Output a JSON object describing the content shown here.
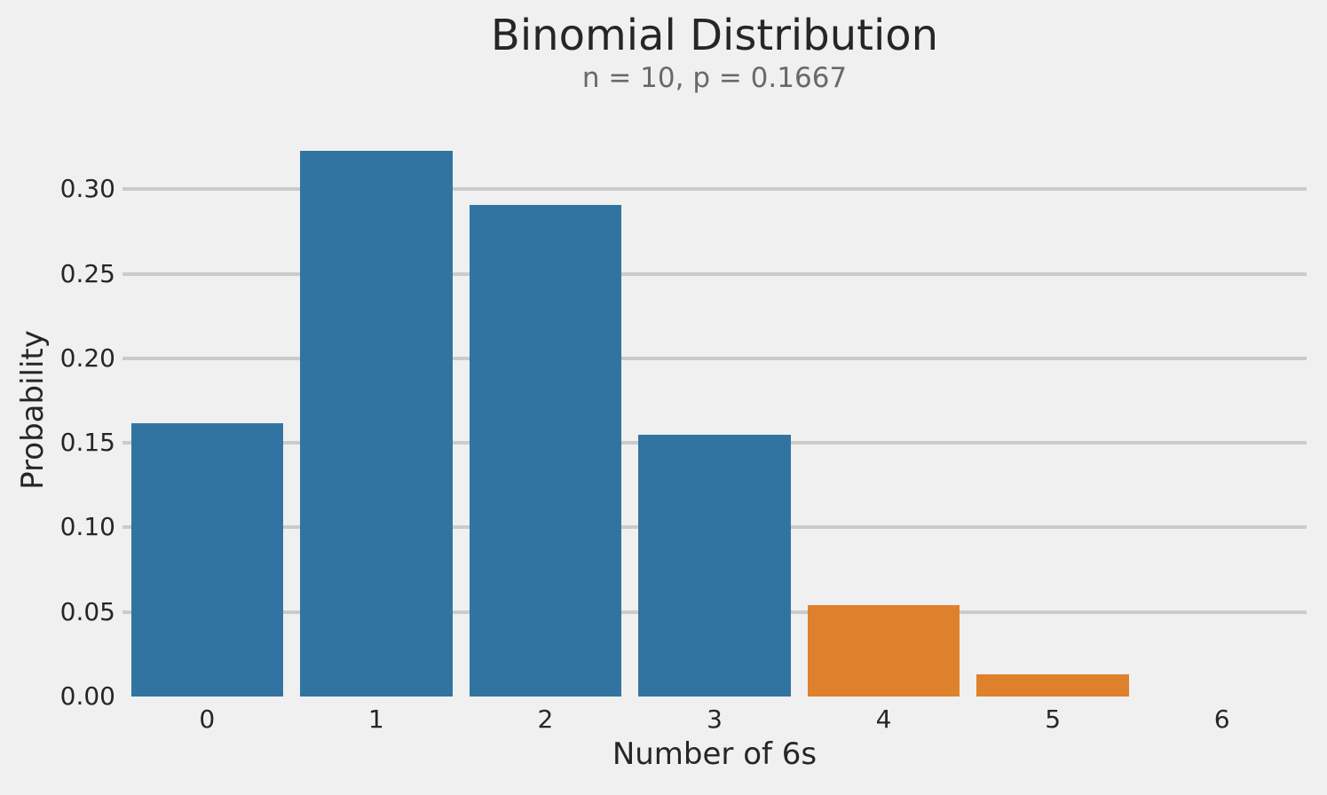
{
  "figure": {
    "background_color": "#f0f0f0",
    "text_color": "#262626",
    "subtitle_color": "#696969",
    "grid_color": "#cbcbcb"
  },
  "chart_data": {
    "type": "bar",
    "title": "Binomial Distribution",
    "subtitle": "n = 10, p = 0.1667",
    "xlabel": "Number of 6s",
    "ylabel": "Probability",
    "categories": [
      "0",
      "1",
      "2",
      "3",
      "4",
      "5",
      "6"
    ],
    "values": [
      0.1615,
      0.323,
      0.2907,
      0.155,
      0.0543,
      0.013,
      0
    ],
    "bar_colors": [
      "#3274a1",
      "#3274a1",
      "#3274a1",
      "#3274a1",
      "#df812c",
      "#df812c",
      "#df812c"
    ],
    "series_colors": {
      "blue": "#3274a1",
      "orange": "#df812c"
    },
    "yticks": {
      "values": [
        0,
        0.05,
        0.1,
        0.15,
        0.2,
        0.25,
        0.3
      ],
      "labels": [
        "0.00",
        "0.05",
        "0.10",
        "0.15",
        "0.20",
        "0.25",
        "0.30"
      ]
    },
    "ylim": [
      0,
      0.339
    ],
    "grid": "horizontal",
    "legend": "none",
    "bar_width_ratio": 0.9
  }
}
